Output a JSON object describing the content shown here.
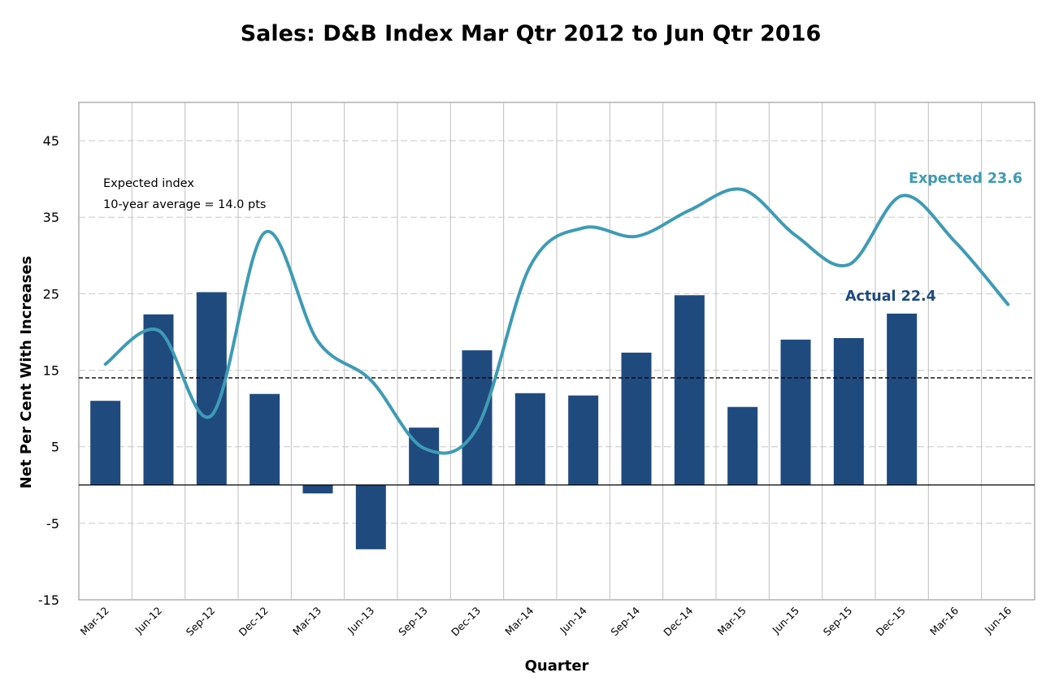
{
  "chart_data": {
    "type": "bar",
    "title": "Sales: D&B Index  Mar Qtr 2012 to Jun Qtr 2016",
    "xlabel": "Quarter",
    "ylabel": "Net Per Cent With Increases",
    "ylim": [
      -15,
      50
    ],
    "yticks": [
      45,
      35,
      25,
      15,
      5,
      -5,
      -15
    ],
    "grid": true,
    "categories": [
      "Mar-12",
      "Jun-12",
      "Sep-12",
      "Dec-12",
      "Mar-13",
      "Jun-13",
      "Sep-13",
      "Dec-13",
      "Mar-14",
      "Jun-14",
      "Sep-14",
      "Dec-14",
      "Mar-15",
      "Jun-15",
      "Sep-15",
      "Dec-15",
      "Mar-16",
      "Jun-16"
    ],
    "series": [
      {
        "name": "Actual",
        "type": "bar",
        "color": "#1f4a7e",
        "values": [
          11.0,
          22.3,
          25.2,
          11.9,
          -1.1,
          -8.4,
          7.5,
          17.6,
          12.0,
          11.7,
          17.3,
          24.8,
          10.2,
          19.0,
          19.2,
          22.4,
          null,
          null
        ]
      },
      {
        "name": "Expected",
        "type": "line",
        "color": "#3f9bb5",
        "values": [
          15.8,
          20.2,
          9.1,
          33.0,
          18.8,
          13.7,
          4.8,
          7.5,
          28.6,
          33.6,
          32.5,
          35.9,
          38.6,
          32.6,
          28.8,
          37.8,
          31.8,
          23.6
        ]
      }
    ],
    "reference_line": {
      "value": 14.0,
      "style": "dashed",
      "color": "#000000"
    },
    "annotations": {
      "note_line1": "Expected index",
      "note_line2": "10-year average = 14.0 pts",
      "expected_label": "Expected 23.6",
      "actual_label": "Actual 22.4"
    }
  }
}
